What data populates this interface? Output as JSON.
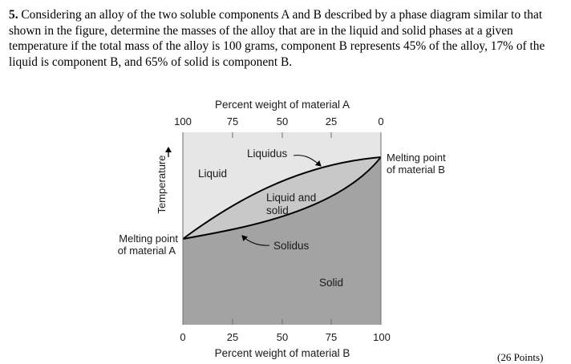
{
  "problem": {
    "number": "5.",
    "text": "Considering an alloy of the two soluble components A and B described by a phase diagram similar to that shown in the figure, determine the masses of the alloy that are in the liquid and solid phases at a given temperature if the total mass of the alloy is 100 grams, component B represents 45% of the alloy, 17% of the liquid is component B, and 65% of solid is component B."
  },
  "figure": {
    "top_axis_title": "Percent weight of material A",
    "top_ticks": [
      "100",
      "75",
      "50",
      "25",
      "0"
    ],
    "bottom_axis_title": "Percent weight of material B",
    "bottom_ticks": [
      "0",
      "25",
      "50",
      "75",
      "100"
    ],
    "y_axis_title": "Temperature",
    "regions": {
      "liquid": "Liquid",
      "liquid_and_solid_line1": "Liquid and",
      "liquid_and_solid_line2": "solid",
      "solid": "Solid"
    },
    "curves": {
      "liquidus": "Liquidus",
      "solidus": "Solidus"
    },
    "melting_point_a_line1": "Melting point",
    "melting_point_a_line2": "of material A",
    "melting_point_b_line1": "Melting point",
    "melting_point_b_line2": "of material B",
    "colors": {
      "liquid_fill": "#e6e6e6",
      "two_phase_fill": "#c8c8c8",
      "solid_fill": "#a3a3a3",
      "curve": "#000000"
    }
  },
  "footer_partial": "(26 Points)"
}
